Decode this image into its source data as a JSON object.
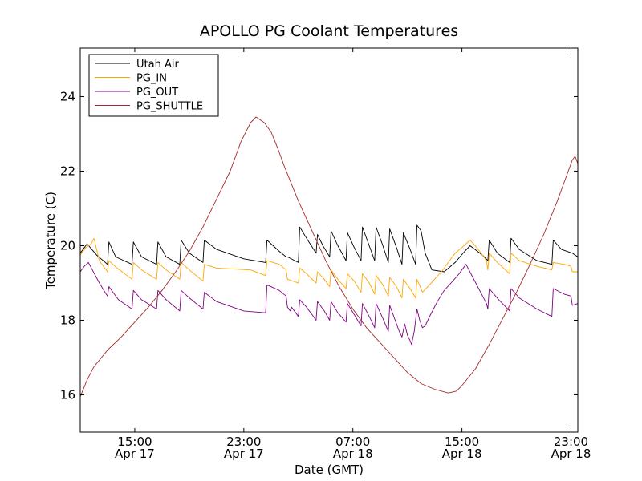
{
  "chart_data": {
    "type": "line",
    "title": "APOLLO PG Coolant Temperatures",
    "xlabel": "Date (GMT)",
    "ylabel": "Temperature (C)",
    "xlim": [
      11.0,
      47.5
    ],
    "ylim": [
      15.0,
      25.3
    ],
    "x_units": "hours since Apr 17 00:00 GMT",
    "xticks": [
      {
        "value": 15,
        "time": "15:00",
        "date": "Apr 17"
      },
      {
        "value": 23,
        "time": "23:00",
        "date": "Apr 17"
      },
      {
        "value": 31,
        "time": "07:00",
        "date": "Apr 18"
      },
      {
        "value": 39,
        "time": "15:00",
        "date": "Apr 18"
      },
      {
        "value": 47,
        "time": "23:00",
        "date": "Apr 18"
      }
    ],
    "yticks": [
      16,
      18,
      20,
      22,
      24
    ],
    "grid": false,
    "legend_position": "top-left",
    "series": [
      {
        "name": "Utah Air",
        "color": "#000000",
        "points": [
          [
            11.0,
            19.8
          ],
          [
            11.5,
            20.05
          ],
          [
            12.2,
            19.75
          ],
          [
            13.0,
            19.5
          ],
          [
            13.1,
            20.1
          ],
          [
            13.6,
            19.7
          ],
          [
            14.8,
            19.5
          ],
          [
            14.9,
            20.1
          ],
          [
            15.5,
            19.7
          ],
          [
            16.6,
            19.5
          ],
          [
            16.7,
            20.1
          ],
          [
            17.3,
            19.7
          ],
          [
            18.3,
            19.5
          ],
          [
            18.4,
            20.15
          ],
          [
            19.0,
            19.8
          ],
          [
            20.0,
            19.55
          ],
          [
            20.1,
            20.15
          ],
          [
            21.0,
            19.9
          ],
          [
            23.0,
            19.65
          ],
          [
            24.6,
            19.55
          ],
          [
            24.7,
            20.15
          ],
          [
            25.6,
            19.85
          ],
          [
            26.1,
            19.7
          ],
          [
            26.2,
            19.7
          ],
          [
            27.0,
            19.55
          ],
          [
            27.1,
            20.5
          ],
          [
            27.6,
            20.2
          ],
          [
            28.3,
            19.8
          ],
          [
            28.4,
            20.3
          ],
          [
            28.8,
            20.0
          ],
          [
            29.3,
            19.7
          ],
          [
            29.4,
            20.4
          ],
          [
            29.9,
            20.0
          ],
          [
            30.5,
            19.6
          ],
          [
            30.6,
            20.35
          ],
          [
            31.1,
            19.95
          ],
          [
            31.6,
            19.6
          ],
          [
            31.7,
            20.5
          ],
          [
            32.2,
            20.0
          ],
          [
            32.6,
            19.6
          ],
          [
            32.7,
            20.5
          ],
          [
            33.2,
            20.0
          ],
          [
            33.6,
            19.55
          ],
          [
            33.7,
            20.45
          ],
          [
            34.2,
            19.95
          ],
          [
            34.6,
            19.5
          ],
          [
            34.7,
            20.35
          ],
          [
            35.2,
            19.9
          ],
          [
            35.6,
            19.5
          ],
          [
            35.7,
            20.55
          ],
          [
            36.0,
            20.4
          ],
          [
            36.3,
            19.8
          ],
          [
            36.8,
            19.35
          ],
          [
            37.7,
            19.3
          ],
          [
            38.5,
            19.55
          ],
          [
            39.2,
            19.85
          ],
          [
            39.6,
            20.0
          ],
          [
            40.5,
            19.75
          ],
          [
            40.9,
            19.6
          ],
          [
            41.0,
            20.15
          ],
          [
            41.6,
            19.8
          ],
          [
            42.5,
            19.55
          ],
          [
            42.6,
            20.2
          ],
          [
            43.2,
            19.9
          ],
          [
            44.5,
            19.6
          ],
          [
            45.6,
            19.5
          ],
          [
            45.7,
            20.15
          ],
          [
            46.3,
            19.9
          ],
          [
            47.1,
            19.8
          ],
          [
            47.5,
            19.7
          ]
        ]
      },
      {
        "name": "PG_IN",
        "color": "#ffa500",
        "points": [
          [
            11.0,
            19.75
          ],
          [
            11.4,
            19.95
          ],
          [
            11.8,
            20.05
          ],
          [
            12.0,
            20.2
          ],
          [
            12.4,
            19.6
          ],
          [
            13.0,
            19.3
          ],
          [
            13.1,
            19.6
          ],
          [
            13.7,
            19.4
          ],
          [
            14.8,
            19.1
          ],
          [
            14.9,
            19.55
          ],
          [
            15.5,
            19.35
          ],
          [
            16.6,
            19.1
          ],
          [
            16.7,
            19.55
          ],
          [
            17.3,
            19.35
          ],
          [
            18.3,
            19.1
          ],
          [
            18.4,
            19.55
          ],
          [
            19.0,
            19.35
          ],
          [
            20.0,
            19.05
          ],
          [
            20.1,
            19.5
          ],
          [
            21.0,
            19.4
          ],
          [
            23.5,
            19.35
          ],
          [
            24.6,
            19.2
          ],
          [
            24.7,
            19.6
          ],
          [
            25.6,
            19.5
          ],
          [
            26.1,
            19.35
          ],
          [
            26.2,
            19.1
          ],
          [
            27.0,
            19.0
          ],
          [
            27.1,
            19.4
          ],
          [
            27.6,
            19.25
          ],
          [
            28.3,
            19.0
          ],
          [
            28.4,
            19.3
          ],
          [
            28.9,
            19.1
          ],
          [
            29.3,
            18.9
          ],
          [
            29.4,
            19.35
          ],
          [
            29.9,
            19.1
          ],
          [
            30.5,
            18.85
          ],
          [
            30.6,
            19.25
          ],
          [
            31.1,
            19.05
          ],
          [
            31.6,
            18.75
          ],
          [
            31.7,
            19.25
          ],
          [
            32.2,
            19.0
          ],
          [
            32.6,
            18.7
          ],
          [
            32.7,
            19.2
          ],
          [
            33.2,
            18.95
          ],
          [
            33.6,
            18.65
          ],
          [
            33.7,
            19.15
          ],
          [
            34.2,
            18.9
          ],
          [
            34.6,
            18.6
          ],
          [
            34.7,
            19.1
          ],
          [
            35.2,
            18.85
          ],
          [
            35.6,
            18.6
          ],
          [
            35.7,
            19.1
          ],
          [
            36.1,
            18.75
          ],
          [
            36.5,
            18.9
          ],
          [
            37.0,
            19.1
          ],
          [
            37.5,
            19.3
          ],
          [
            38.0,
            19.55
          ],
          [
            38.5,
            19.8
          ],
          [
            39.0,
            19.95
          ],
          [
            39.6,
            20.15
          ],
          [
            40.2,
            19.9
          ],
          [
            40.8,
            19.6
          ],
          [
            40.9,
            19.35
          ],
          [
            41.0,
            19.8
          ],
          [
            41.6,
            19.55
          ],
          [
            42.5,
            19.25
          ],
          [
            42.6,
            19.8
          ],
          [
            43.2,
            19.6
          ],
          [
            44.5,
            19.45
          ],
          [
            45.6,
            19.35
          ],
          [
            45.7,
            19.55
          ],
          [
            46.5,
            19.5
          ],
          [
            47.0,
            19.45
          ],
          [
            47.1,
            19.3
          ],
          [
            47.5,
            19.3
          ]
        ]
      },
      {
        "name": "PG_OUT",
        "color": "#800080",
        "points": [
          [
            11.0,
            19.3
          ],
          [
            11.3,
            19.45
          ],
          [
            11.6,
            19.55
          ],
          [
            12.4,
            19.0
          ],
          [
            12.9,
            18.7
          ],
          [
            13.0,
            18.65
          ],
          [
            13.1,
            18.9
          ],
          [
            13.8,
            18.55
          ],
          [
            14.8,
            18.3
          ],
          [
            14.9,
            18.8
          ],
          [
            15.5,
            18.55
          ],
          [
            16.6,
            18.3
          ],
          [
            16.7,
            18.8
          ],
          [
            17.3,
            18.55
          ],
          [
            18.3,
            18.25
          ],
          [
            18.4,
            18.8
          ],
          [
            19.0,
            18.6
          ],
          [
            20.0,
            18.3
          ],
          [
            20.1,
            18.75
          ],
          [
            21.0,
            18.5
          ],
          [
            23.0,
            18.25
          ],
          [
            24.6,
            18.2
          ],
          [
            24.7,
            18.95
          ],
          [
            25.6,
            18.8
          ],
          [
            26.1,
            18.65
          ],
          [
            26.2,
            18.35
          ],
          [
            26.4,
            18.25
          ],
          [
            26.5,
            18.35
          ],
          [
            27.0,
            18.1
          ],
          [
            27.1,
            18.55
          ],
          [
            27.6,
            18.35
          ],
          [
            28.3,
            18.0
          ],
          [
            28.4,
            18.5
          ],
          [
            28.9,
            18.25
          ],
          [
            29.3,
            18.0
          ],
          [
            29.4,
            18.5
          ],
          [
            29.9,
            18.2
          ],
          [
            30.5,
            17.95
          ],
          [
            30.6,
            18.45
          ],
          [
            31.1,
            18.15
          ],
          [
            31.6,
            17.85
          ],
          [
            31.7,
            18.45
          ],
          [
            32.2,
            18.1
          ],
          [
            32.6,
            17.8
          ],
          [
            32.7,
            18.45
          ],
          [
            33.2,
            18.05
          ],
          [
            33.6,
            17.7
          ],
          [
            33.7,
            18.4
          ],
          [
            34.0,
            18.1
          ],
          [
            34.2,
            17.9
          ],
          [
            34.4,
            17.7
          ],
          [
            34.6,
            17.55
          ],
          [
            34.8,
            17.9
          ],
          [
            35.0,
            17.6
          ],
          [
            35.2,
            17.45
          ],
          [
            35.3,
            17.35
          ],
          [
            35.5,
            17.7
          ],
          [
            35.7,
            18.3
          ],
          [
            35.9,
            18.0
          ],
          [
            36.1,
            17.8
          ],
          [
            36.3,
            17.85
          ],
          [
            36.7,
            18.15
          ],
          [
            37.2,
            18.5
          ],
          [
            37.7,
            18.8
          ],
          [
            38.2,
            19.0
          ],
          [
            38.8,
            19.25
          ],
          [
            39.3,
            19.5
          ],
          [
            39.8,
            19.15
          ],
          [
            40.3,
            18.8
          ],
          [
            40.8,
            18.45
          ],
          [
            40.9,
            18.3
          ],
          [
            41.0,
            18.85
          ],
          [
            41.7,
            18.55
          ],
          [
            42.5,
            18.25
          ],
          [
            42.6,
            18.85
          ],
          [
            43.2,
            18.6
          ],
          [
            44.5,
            18.3
          ],
          [
            45.6,
            18.1
          ],
          [
            45.7,
            18.85
          ],
          [
            46.5,
            18.7
          ],
          [
            47.0,
            18.65
          ],
          [
            47.1,
            18.4
          ],
          [
            47.5,
            18.45
          ]
        ]
      },
      {
        "name": "PG_SHUTTLE",
        "color": "#a52a2a",
        "points": [
          [
            11.0,
            15.95
          ],
          [
            11.5,
            16.4
          ],
          [
            12.0,
            16.75
          ],
          [
            13.0,
            17.2
          ],
          [
            14.0,
            17.55
          ],
          [
            15.0,
            17.95
          ],
          [
            16.0,
            18.35
          ],
          [
            17.0,
            18.8
          ],
          [
            18.0,
            19.3
          ],
          [
            19.0,
            19.85
          ],
          [
            20.0,
            20.5
          ],
          [
            21.0,
            21.25
          ],
          [
            22.0,
            22.0
          ],
          [
            22.8,
            22.8
          ],
          [
            23.5,
            23.3
          ],
          [
            23.9,
            23.45
          ],
          [
            24.5,
            23.3
          ],
          [
            25.0,
            23.05
          ],
          [
            25.5,
            22.6
          ],
          [
            26.0,
            22.1
          ],
          [
            27.0,
            21.2
          ],
          [
            28.0,
            20.4
          ],
          [
            29.0,
            19.6
          ],
          [
            30.0,
            18.9
          ],
          [
            31.0,
            18.3
          ],
          [
            32.0,
            17.8
          ],
          [
            33.0,
            17.4
          ],
          [
            34.0,
            17.0
          ],
          [
            35.0,
            16.6
          ],
          [
            36.0,
            16.3
          ],
          [
            37.0,
            16.15
          ],
          [
            38.0,
            16.05
          ],
          [
            38.6,
            16.1
          ],
          [
            39.0,
            16.25
          ],
          [
            40.0,
            16.7
          ],
          [
            41.0,
            17.35
          ],
          [
            42.0,
            18.05
          ],
          [
            43.0,
            18.75
          ],
          [
            44.0,
            19.5
          ],
          [
            45.0,
            20.3
          ],
          [
            46.0,
            21.2
          ],
          [
            46.7,
            21.9
          ],
          [
            47.1,
            22.3
          ],
          [
            47.3,
            22.4
          ],
          [
            47.5,
            22.2
          ]
        ]
      }
    ]
  }
}
